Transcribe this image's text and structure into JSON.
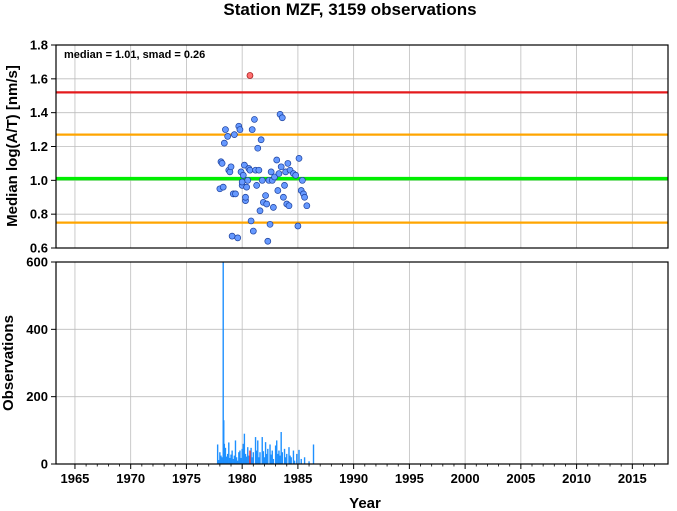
{
  "chart_data": [
    {
      "type": "scatter",
      "title": "Station MZF, 3159 observations",
      "annotation": "median = 1.01, smad = 0.26",
      "xlabel": "Year",
      "ylabel": "Median log(A/T) [nm/s]",
      "xlim": [
        1963.3,
        2018.2
      ],
      "ylim": [
        0.6,
        1.8
      ],
      "yticks": [
        "0.6",
        "0.8",
        "1.0",
        "1.2",
        "1.4",
        "1.6",
        "1.8"
      ],
      "grid": true,
      "reference_lines": [
        {
          "y": 1.52,
          "color": "#e41a1c"
        },
        {
          "y": 1.27,
          "color": "#ffa500"
        },
        {
          "y": 1.01,
          "color": "#00ee00"
        },
        {
          "y": 0.75,
          "color": "#ffa500"
        }
      ],
      "points_normal": [
        [
          1978.0,
          0.95
        ],
        [
          1978.1,
          1.11
        ],
        [
          1978.2,
          1.1
        ],
        [
          1978.3,
          0.96
        ],
        [
          1978.4,
          1.22
        ],
        [
          1978.5,
          1.3
        ],
        [
          1978.7,
          1.26
        ],
        [
          1978.8,
          1.06
        ],
        [
          1978.9,
          1.05
        ],
        [
          1979.0,
          1.08
        ],
        [
          1979.1,
          0.67
        ],
        [
          1979.2,
          0.92
        ],
        [
          1979.3,
          1.27
        ],
        [
          1979.4,
          0.92
        ],
        [
          1979.6,
          0.66
        ],
        [
          1979.7,
          1.32
        ],
        [
          1979.8,
          1.3
        ],
        [
          1979.9,
          1.05
        ],
        [
          1980.0,
          0.97
        ],
        [
          1980.0,
          0.99
        ],
        [
          1980.1,
          1.03
        ],
        [
          1980.2,
          1.09
        ],
        [
          1980.3,
          0.88
        ],
        [
          1980.3,
          0.9
        ],
        [
          1980.4,
          0.96
        ],
        [
          1980.5,
          1.0
        ],
        [
          1980.6,
          1.07
        ],
        [
          1980.7,
          1.06
        ],
        [
          1980.8,
          0.76
        ],
        [
          1980.9,
          1.3
        ],
        [
          1981.0,
          0.7
        ],
        [
          1981.1,
          1.36
        ],
        [
          1981.2,
          1.06
        ],
        [
          1981.3,
          0.97
        ],
        [
          1981.4,
          1.19
        ],
        [
          1981.5,
          1.06
        ],
        [
          1981.6,
          0.82
        ],
        [
          1981.7,
          1.24
        ],
        [
          1981.8,
          1.0
        ],
        [
          1981.9,
          0.87
        ],
        [
          1982.1,
          0.91
        ],
        [
          1982.2,
          0.86
        ],
        [
          1982.3,
          0.64
        ],
        [
          1982.4,
          1.0
        ],
        [
          1982.5,
          0.74
        ],
        [
          1982.6,
          1.05
        ],
        [
          1982.7,
          1.0
        ],
        [
          1982.8,
          0.84
        ],
        [
          1982.9,
          1.02
        ],
        [
          1983.1,
          1.12
        ],
        [
          1983.2,
          0.94
        ],
        [
          1983.3,
          1.04
        ],
        [
          1983.4,
          1.39
        ],
        [
          1983.5,
          1.08
        ],
        [
          1983.6,
          1.37
        ],
        [
          1983.7,
          0.9
        ],
        [
          1983.8,
          0.97
        ],
        [
          1983.9,
          1.05
        ],
        [
          1984.0,
          0.86
        ],
        [
          1984.1,
          1.1
        ],
        [
          1984.2,
          0.85
        ],
        [
          1984.3,
          1.06
        ],
        [
          1984.6,
          1.04
        ],
        [
          1984.8,
          1.03
        ],
        [
          1985.0,
          0.73
        ],
        [
          1985.1,
          1.13
        ],
        [
          1985.3,
          0.94
        ],
        [
          1985.4,
          1.0
        ],
        [
          1985.5,
          0.92
        ],
        [
          1985.6,
          0.9
        ],
        [
          1985.8,
          0.85
        ]
      ],
      "points_outlier": [
        [
          1980.7,
          1.62
        ]
      ]
    },
    {
      "type": "bar",
      "xlabel": "Year",
      "ylabel": "Observations",
      "xlim": [
        1963.3,
        2018.2
      ],
      "ylim": [
        0,
        600
      ],
      "yticks": [
        "0",
        "200",
        "400",
        "600"
      ],
      "xticks": [
        "1965",
        "1970",
        "1975",
        "1980",
        "1985",
        "1990",
        "1995",
        "2000",
        "2005",
        "2010",
        "2015"
      ],
      "grid": true,
      "bar_color": "#1e90ff",
      "highlight_color": "#ff3333",
      "bars": [
        [
          1977.8,
          58
        ],
        [
          1977.9,
          12
        ],
        [
          1978.0,
          35
        ],
        [
          1978.1,
          25
        ],
        [
          1978.2,
          20
        ],
        [
          1978.3,
          600
        ],
        [
          1978.35,
          130
        ],
        [
          1978.4,
          60
        ],
        [
          1978.5,
          48
        ],
        [
          1978.6,
          22
        ],
        [
          1978.7,
          30
        ],
        [
          1978.8,
          64
        ],
        [
          1978.9,
          18
        ],
        [
          1979.0,
          28
        ],
        [
          1979.1,
          40
        ],
        [
          1979.2,
          15
        ],
        [
          1979.3,
          25
        ],
        [
          1979.4,
          70
        ],
        [
          1979.5,
          20
        ],
        [
          1979.6,
          10
        ],
        [
          1979.7,
          35
        ],
        [
          1979.8,
          40
        ],
        [
          1979.9,
          18
        ],
        [
          1980.0,
          45
        ],
        [
          1980.1,
          60
        ],
        [
          1980.2,
          90
        ],
        [
          1980.3,
          30
        ],
        [
          1980.4,
          22
        ],
        [
          1980.5,
          50
        ],
        [
          1980.6,
          25
        ],
        [
          1980.8,
          48
        ],
        [
          1980.9,
          20
        ],
        [
          1981.0,
          35
        ],
        [
          1981.2,
          80
        ],
        [
          1981.3,
          40
        ],
        [
          1981.4,
          70
        ],
        [
          1981.5,
          20
        ],
        [
          1981.6,
          35
        ],
        [
          1981.8,
          80
        ],
        [
          1981.9,
          38
        ],
        [
          1982.0,
          20
        ],
        [
          1982.1,
          65
        ],
        [
          1982.2,
          30
        ],
        [
          1982.3,
          45
        ],
        [
          1982.5,
          58
        ],
        [
          1982.6,
          28
        ],
        [
          1982.7,
          40
        ],
        [
          1982.8,
          15
        ],
        [
          1983.0,
          55
        ],
        [
          1983.1,
          70
        ],
        [
          1983.2,
          30
        ],
        [
          1983.3,
          40
        ],
        [
          1983.4,
          25
        ],
        [
          1983.5,
          95
        ],
        [
          1983.6,
          35
        ],
        [
          1983.8,
          45
        ],
        [
          1983.9,
          20
        ],
        [
          1984.0,
          30
        ],
        [
          1984.2,
          50
        ],
        [
          1984.3,
          25
        ],
        [
          1984.4,
          20
        ],
        [
          1984.6,
          40
        ],
        [
          1984.7,
          10
        ],
        [
          1984.9,
          30
        ],
        [
          1985.1,
          42
        ],
        [
          1985.3,
          15
        ],
        [
          1985.6,
          20
        ],
        [
          1986.0,
          8
        ],
        [
          1986.4,
          58
        ]
      ],
      "highlight_bars": [
        [
          1980.7,
          40
        ]
      ]
    }
  ]
}
